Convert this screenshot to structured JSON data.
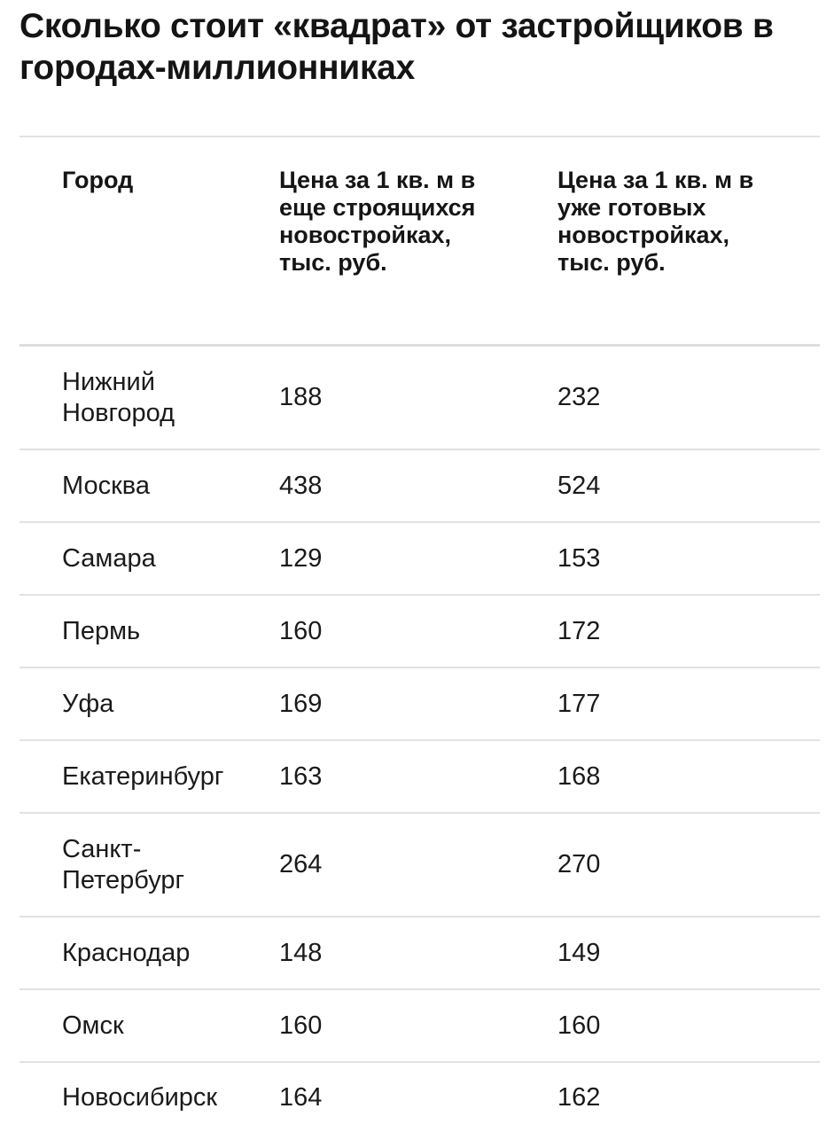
{
  "title": "Сколько стоит «квадрат» от застройщиков в городах-миллионниках",
  "chart_data": {
    "type": "table",
    "columns": [
      "Город",
      "Цена за 1 кв. м в еще строящихся новостройках, тыс. руб.",
      "Цена за 1 кв. м в уже готовых новостройках, тыс. руб."
    ],
    "rows": [
      {
        "city": "Нижний Новгород",
        "under_construction": "188",
        "completed": "232"
      },
      {
        "city": "Москва",
        "under_construction": "438",
        "completed": "524"
      },
      {
        "city": "Самара",
        "under_construction": "129",
        "completed": "153"
      },
      {
        "city": "Пермь",
        "under_construction": "160",
        "completed": "172"
      },
      {
        "city": "Уфа",
        "under_construction": "169",
        "completed": "177"
      },
      {
        "city": "Екатеринбург",
        "under_construction": "163",
        "completed": "168"
      },
      {
        "city": "Санкт-Петербург",
        "under_construction": "264",
        "completed": "270"
      },
      {
        "city": "Краснодар",
        "under_construction": "148",
        "completed": "149"
      },
      {
        "city": "Омск",
        "under_construction": "160",
        "completed": "160"
      },
      {
        "city": "Новосибирск",
        "under_construction": "164",
        "completed": "162"
      }
    ]
  }
}
